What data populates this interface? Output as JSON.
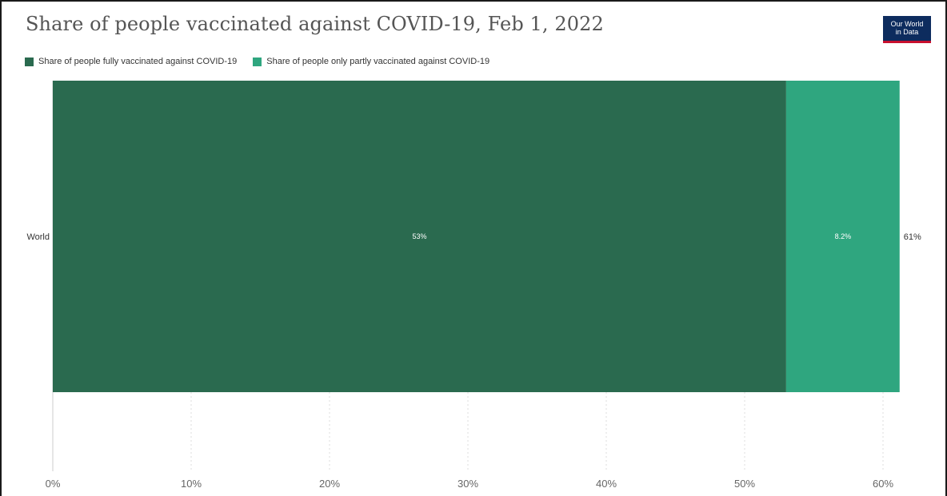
{
  "title": "Share of people vaccinated against COVID-19, Feb 1, 2022",
  "logo": {
    "line1": "Our World",
    "line2": "in Data",
    "bg_color": "#0d2c5e",
    "accent_color": "#c8102e"
  },
  "legend": [
    {
      "label": "Share of people fully vaccinated against COVID-19",
      "color": "#2a6a4f"
    },
    {
      "label": "Share of people only partly vaccinated against COVID-19",
      "color": "#2fa67f"
    }
  ],
  "chart_data": {
    "type": "bar",
    "orientation": "horizontal",
    "stacked": true,
    "categories": [
      "World"
    ],
    "series": [
      {
        "name": "Share of people fully vaccinated against COVID-19",
        "values": [
          53
        ],
        "labels": [
          "53%"
        ],
        "color": "#2a6a4f"
      },
      {
        "name": "Share of people only partly vaccinated against COVID-19",
        "values": [
          8.2
        ],
        "labels": [
          "8.2%"
        ],
        "color": "#2fa67f"
      }
    ],
    "totals": [
      "61%"
    ],
    "xlim": [
      0,
      60
    ],
    "xticks": [
      "0%",
      "10%",
      "20%",
      "30%",
      "40%",
      "50%",
      "60%"
    ],
    "xlabel": "",
    "ylabel": "",
    "grid": true,
    "legend_position": "top-left"
  }
}
